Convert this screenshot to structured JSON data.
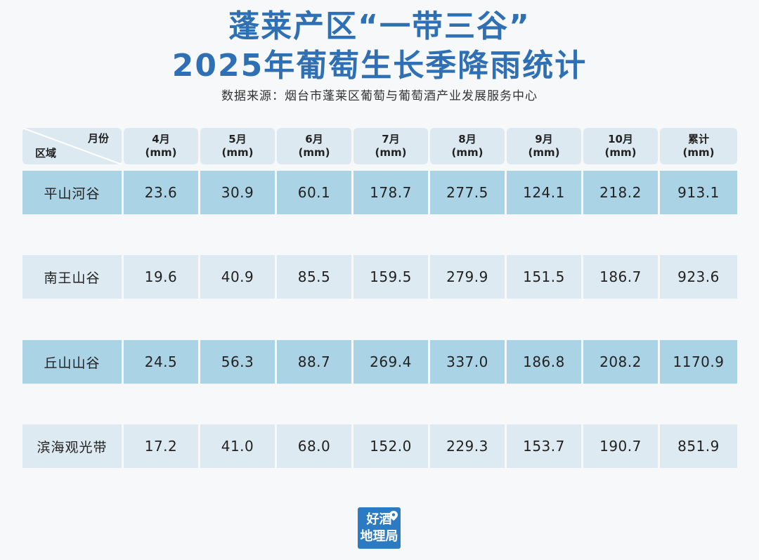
{
  "title_line1": "蓬莱产区“一带三谷”",
  "title_line2": "2025年葡萄生长季降雨统计",
  "source": "数据来源：烟台市蓬莱区葡萄与葡萄酒产业发展服务中心",
  "logo": {
    "line1": "好酒",
    "line2": "地理局"
  },
  "colors": {
    "title": "#2f6fb4",
    "row_dark": "#abd3e6",
    "row_light": "#deeaf1",
    "header": "#dde9f1",
    "logo": "#2c7ac2"
  },
  "chart_data": {
    "type": "table",
    "corner": {
      "top": "月份",
      "bottom": "区域"
    },
    "columns": [
      {
        "name": "4月",
        "unit": "(mm)"
      },
      {
        "name": "5月",
        "unit": "(mm)"
      },
      {
        "name": "6月",
        "unit": "(mm)"
      },
      {
        "name": "7月",
        "unit": "(mm)"
      },
      {
        "name": "8月",
        "unit": "(mm)"
      },
      {
        "name": "9月",
        "unit": "(mm)"
      },
      {
        "name": "10月",
        "unit": "(mm)"
      },
      {
        "name": "累计",
        "unit": "(mm)"
      }
    ],
    "rows": [
      {
        "region": "平山河谷",
        "values": [
          "23.6",
          "30.9",
          "60.1",
          "178.7",
          "277.5",
          "124.1",
          "218.2",
          "913.1"
        ]
      },
      {
        "region": "南王山谷",
        "values": [
          "19.6",
          "40.9",
          "85.5",
          "159.5",
          "279.9",
          "151.5",
          "186.7",
          "923.6"
        ]
      },
      {
        "region": "丘山山谷",
        "values": [
          "24.5",
          "56.3",
          "88.7",
          "269.4",
          "337.0",
          "186.8",
          "208.2",
          "1170.9"
        ]
      },
      {
        "region": "滨海观光带",
        "values": [
          "17.2",
          "41.0",
          "68.0",
          "152.0",
          "229.3",
          "153.7",
          "190.7",
          "851.9"
        ]
      }
    ]
  }
}
